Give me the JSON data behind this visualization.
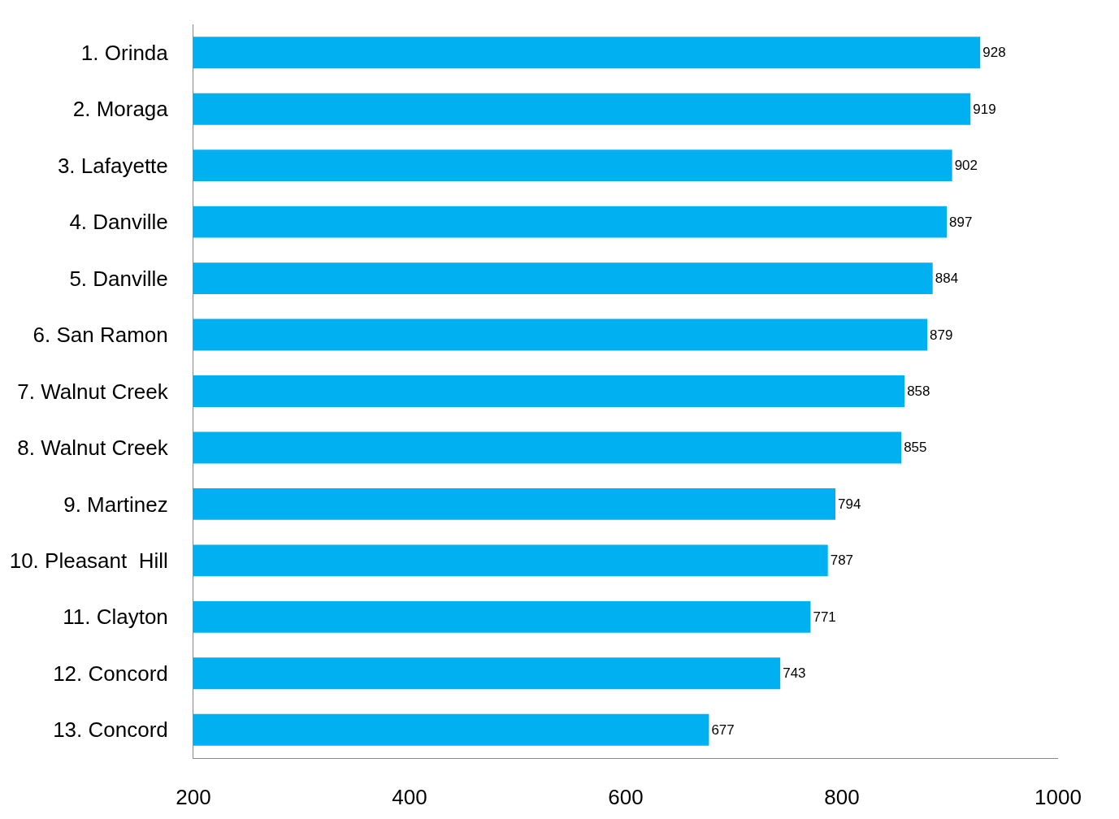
{
  "chart_data": {
    "type": "bar",
    "orientation": "horizontal",
    "categories": [
      "1. Orinda",
      "2. Moraga",
      "3. Lafayette",
      "4. Danville",
      "5. Danville",
      "6. San Ramon",
      "7. Walnut Creek",
      "8. Walnut Creek",
      "9. Martinez",
      "10. Pleasant  Hill",
      "11. Clayton",
      "12. Concord",
      "13. Concord"
    ],
    "values": [
      928,
      919,
      902,
      897,
      884,
      879,
      858,
      855,
      794,
      787,
      771,
      743,
      677
    ],
    "color": "#00b0f0",
    "data_labels": true,
    "xlim": [
      200,
      1000
    ],
    "xticks": [
      200,
      400,
      600,
      800,
      1000
    ]
  }
}
